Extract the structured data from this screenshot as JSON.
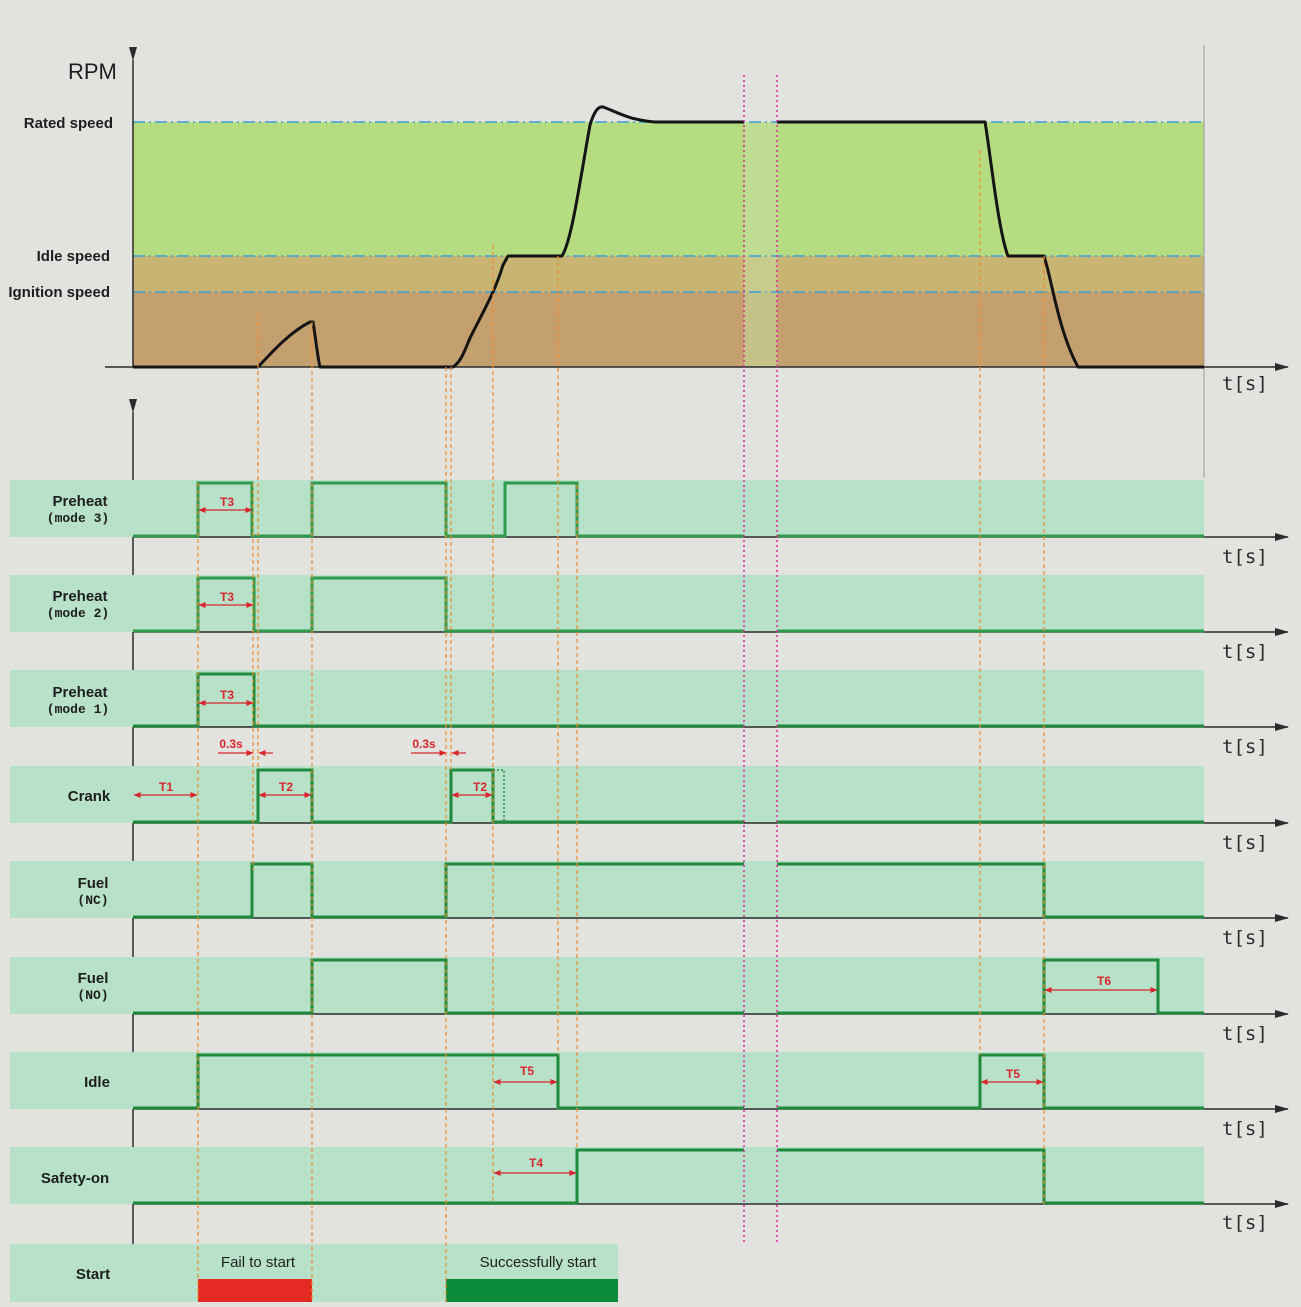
{
  "rpm_chart": {
    "y_axis_label": "RPM",
    "x_axis_label": "t[s]",
    "levels": {
      "rated": "Rated speed",
      "idle": "Idle speed",
      "ignition": "Ignition speed"
    }
  },
  "time_unit_label": "t[s]",
  "signals": [
    {
      "key": "preheat3",
      "label": "Preheat",
      "sub": "(mode 3)"
    },
    {
      "key": "preheat2",
      "label": "Preheat",
      "sub": "(mode 2)"
    },
    {
      "key": "preheat1",
      "label": "Preheat",
      "sub": "(mode 1)"
    },
    {
      "key": "crank",
      "label": "Crank",
      "sub": ""
    },
    {
      "key": "fuel_nc",
      "label": "Fuel",
      "sub": "(NC)"
    },
    {
      "key": "fuel_no",
      "label": "Fuel",
      "sub": "(NO)"
    },
    {
      "key": "idle",
      "label": "Idle",
      "sub": ""
    },
    {
      "key": "safety",
      "label": "Safety-on",
      "sub": ""
    }
  ],
  "start_row": {
    "label": "Start",
    "fail": "Fail to start",
    "success": "Successfully start",
    "fail_color": "#e42a22",
    "success_color": "#0b8a3a"
  },
  "annotations": {
    "t1": "T1",
    "t2": "T2",
    "t3": "T3",
    "t4": "T4",
    "t5": "T5",
    "t6": "T6",
    "delay": "0.3s"
  },
  "colors": {
    "background": "#e2e2df",
    "band_green": "#b7e1c9",
    "rated_zone": "#b6dc81",
    "idle_zone": "#c8b574",
    "ignition_zone": "#c4a06f",
    "signal_line": "#2f9a4a",
    "rpm_curve": "#141414",
    "marker_orange": "#f08a2c",
    "marker_magenta": "#e0239a",
    "level_dash": "#3aa0d8",
    "annotation_red": "#d8262c"
  }
}
